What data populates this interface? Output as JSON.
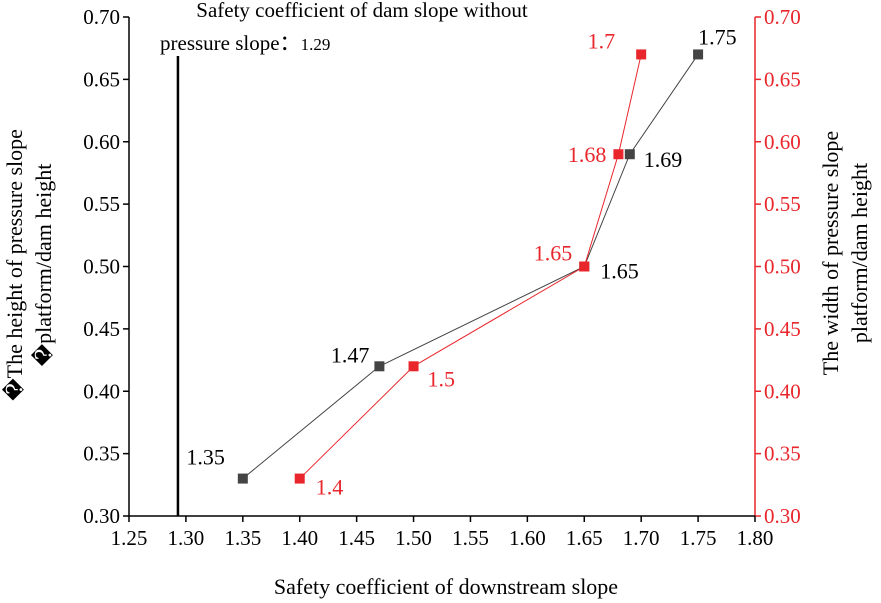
{
  "chart_data": {
    "type": "line",
    "xlabel": "Safety coefficient of downstream slope",
    "ylabel_left_lines": [
      "�The height of pressure slope",
      "�platform/dam height"
    ],
    "ylabel_right_lines": [
      "The width of pressure slope",
      "platform/dam height"
    ],
    "xlim": [
      1.25,
      1.8
    ],
    "xticks": [
      "1.25",
      "1.30",
      "1.35",
      "1.40",
      "1.45",
      "1.50",
      "1.55",
      "1.60",
      "1.65",
      "1.70",
      "1.75",
      "1.80"
    ],
    "ylim_left": [
      0.3,
      0.7
    ],
    "ylim_right": [
      0.3,
      0.7
    ],
    "yticks_left": [
      "0.30",
      "0.35",
      "0.40",
      "0.45",
      "0.50",
      "0.55",
      "0.60",
      "0.65",
      "0.70"
    ],
    "yticks_right": [
      "0.30",
      "0.35",
      "0.40",
      "0.45",
      "0.50",
      "0.55",
      "0.60",
      "0.65",
      "0.70"
    ],
    "reference_line": {
      "x": 1.293,
      "label_line1": "Safety coefficient of dam slope without",
      "label_line2": "pressure slope：",
      "label_value": "1.29"
    },
    "series": [
      {
        "axis": "left",
        "color": "#444444",
        "points": [
          {
            "x": 1.35,
            "y": 0.33,
            "label": "1.35"
          },
          {
            "x": 1.47,
            "y": 0.42,
            "label": "1.47"
          },
          {
            "x": 1.65,
            "y": 0.5,
            "label": "1.65"
          },
          {
            "x": 1.69,
            "y": 0.59,
            "label": "1.69"
          },
          {
            "x": 1.75,
            "y": 0.67,
            "label": "1.75"
          }
        ]
      },
      {
        "axis": "right",
        "color": "#e8262b",
        "points": [
          {
            "x": 1.4,
            "y": 0.33,
            "label": "1.4"
          },
          {
            "x": 1.5,
            "y": 0.42,
            "label": "1.5"
          },
          {
            "x": 1.65,
            "y": 0.5,
            "label": "1.65"
          },
          {
            "x": 1.68,
            "y": 0.59,
            "label": "1.68"
          },
          {
            "x": 1.7,
            "y": 0.67,
            "label": "1.7"
          }
        ]
      }
    ],
    "colors": {
      "left_axis": "#000000",
      "right_axis": "#e8262b"
    }
  }
}
